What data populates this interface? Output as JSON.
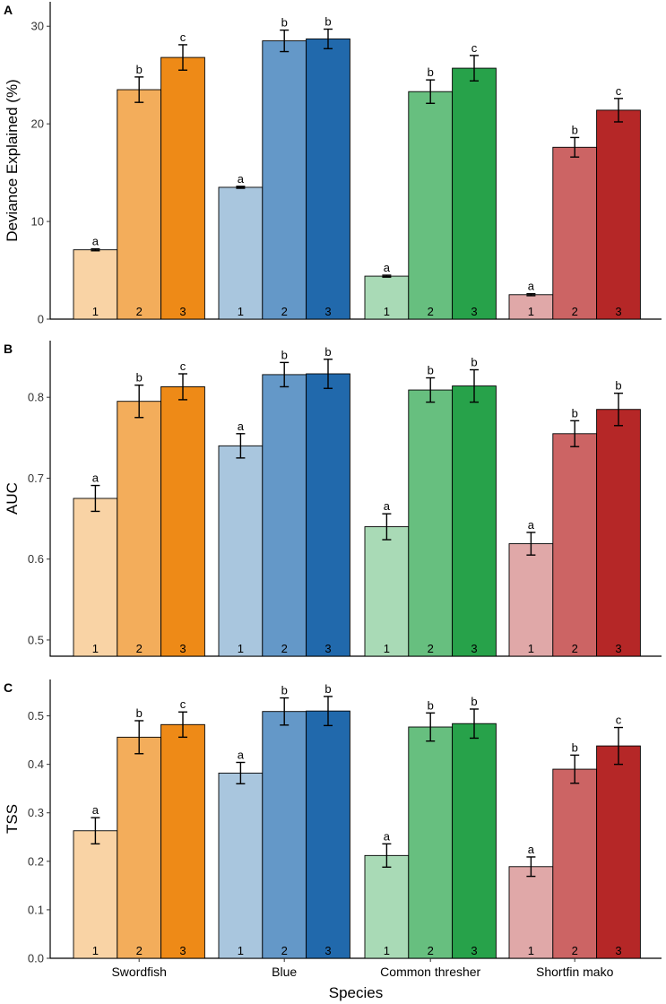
{
  "chart_data": [
    {
      "type": "bar",
      "panel": "A",
      "ylabel": "Deviance Explained (%)",
      "ylim": [
        0,
        32.5
      ],
      "yticks": [
        0,
        10,
        20,
        30
      ],
      "ytick_labels": [
        "0",
        "10",
        "20",
        "30"
      ],
      "categories": [
        "Swordfish",
        "Blue",
        "Common thresher",
        "Shortfin mako"
      ],
      "bar_labels": [
        "1",
        "2",
        "3"
      ],
      "values": [
        [
          7.1,
          23.5,
          26.8
        ],
        [
          13.5,
          28.5,
          28.7
        ],
        [
          4.4,
          23.3,
          25.7
        ],
        [
          2.5,
          17.6,
          21.4
        ]
      ],
      "errors": [
        [
          0.1,
          1.3,
          1.3
        ],
        [
          0.1,
          1.1,
          1.0
        ],
        [
          0.1,
          1.2,
          1.3
        ],
        [
          0.1,
          1.0,
          1.2
        ]
      ],
      "sig_letters": [
        [
          "a",
          "b",
          "c"
        ],
        [
          "a",
          "b",
          "b"
        ],
        [
          "a",
          "b",
          "c"
        ],
        [
          "a",
          "b",
          "c"
        ]
      ]
    },
    {
      "type": "bar",
      "panel": "B",
      "ylabel": "AUC",
      "ylim": [
        0.48,
        0.87
      ],
      "yticks": [
        0.5,
        0.6,
        0.7,
        0.8
      ],
      "ytick_labels": [
        "0.5",
        "0.6",
        "0.7",
        "0.8"
      ],
      "categories": [
        "Swordfish",
        "Blue",
        "Common thresher",
        "Shortfin mako"
      ],
      "bar_labels": [
        "1",
        "2",
        "3"
      ],
      "values": [
        [
          0.675,
          0.795,
          0.813
        ],
        [
          0.74,
          0.828,
          0.829
        ],
        [
          0.64,
          0.809,
          0.814
        ],
        [
          0.619,
          0.755,
          0.785
        ]
      ],
      "errors": [
        [
          0.016,
          0.02,
          0.016
        ],
        [
          0.015,
          0.015,
          0.018
        ],
        [
          0.016,
          0.015,
          0.02
        ],
        [
          0.014,
          0.016,
          0.02
        ]
      ],
      "sig_letters": [
        [
          "a",
          "b",
          "c"
        ],
        [
          "a",
          "b",
          "b"
        ],
        [
          "a",
          "b",
          "b"
        ],
        [
          "a",
          "b",
          "b"
        ]
      ]
    },
    {
      "type": "bar",
      "panel": "C",
      "ylabel": "TSS",
      "xlabel": "Species",
      "ylim": [
        0,
        0.575
      ],
      "yticks": [
        0,
        0.1,
        0.2,
        0.3,
        0.4,
        0.5
      ],
      "ytick_labels": [
        "0.0",
        "0.1",
        "0.2",
        "0.3",
        "0.4",
        "0.5"
      ],
      "categories": [
        "Swordfish",
        "Blue",
        "Common thresher",
        "Shortfin mako"
      ],
      "bar_labels": [
        "1",
        "2",
        "3"
      ],
      "values": [
        [
          0.263,
          0.456,
          0.482
        ],
        [
          0.382,
          0.509,
          0.51
        ],
        [
          0.212,
          0.477,
          0.484
        ],
        [
          0.189,
          0.39,
          0.438
        ]
      ],
      "errors": [
        [
          0.027,
          0.034,
          0.026
        ],
        [
          0.022,
          0.028,
          0.03
        ],
        [
          0.024,
          0.029,
          0.03
        ],
        [
          0.02,
          0.029,
          0.038
        ]
      ],
      "sig_letters": [
        [
          "a",
          "b",
          "c"
        ],
        [
          "a",
          "b",
          "b"
        ],
        [
          "a",
          "b",
          "b"
        ],
        [
          "a",
          "b",
          "c"
        ]
      ]
    }
  ],
  "colors": {
    "Swordfish": [
      "#f9d3a5",
      "#f3ad5b",
      "#ee8a17"
    ],
    "Blue": [
      "#a9c6de",
      "#6498c8",
      "#2169ac"
    ],
    "Common thresher": [
      "#a9dab6",
      "#67bf7f",
      "#27a24a"
    ],
    "Shortfin mako": [
      "#e0a8a8",
      "#cc6464",
      "#b52727"
    ]
  }
}
